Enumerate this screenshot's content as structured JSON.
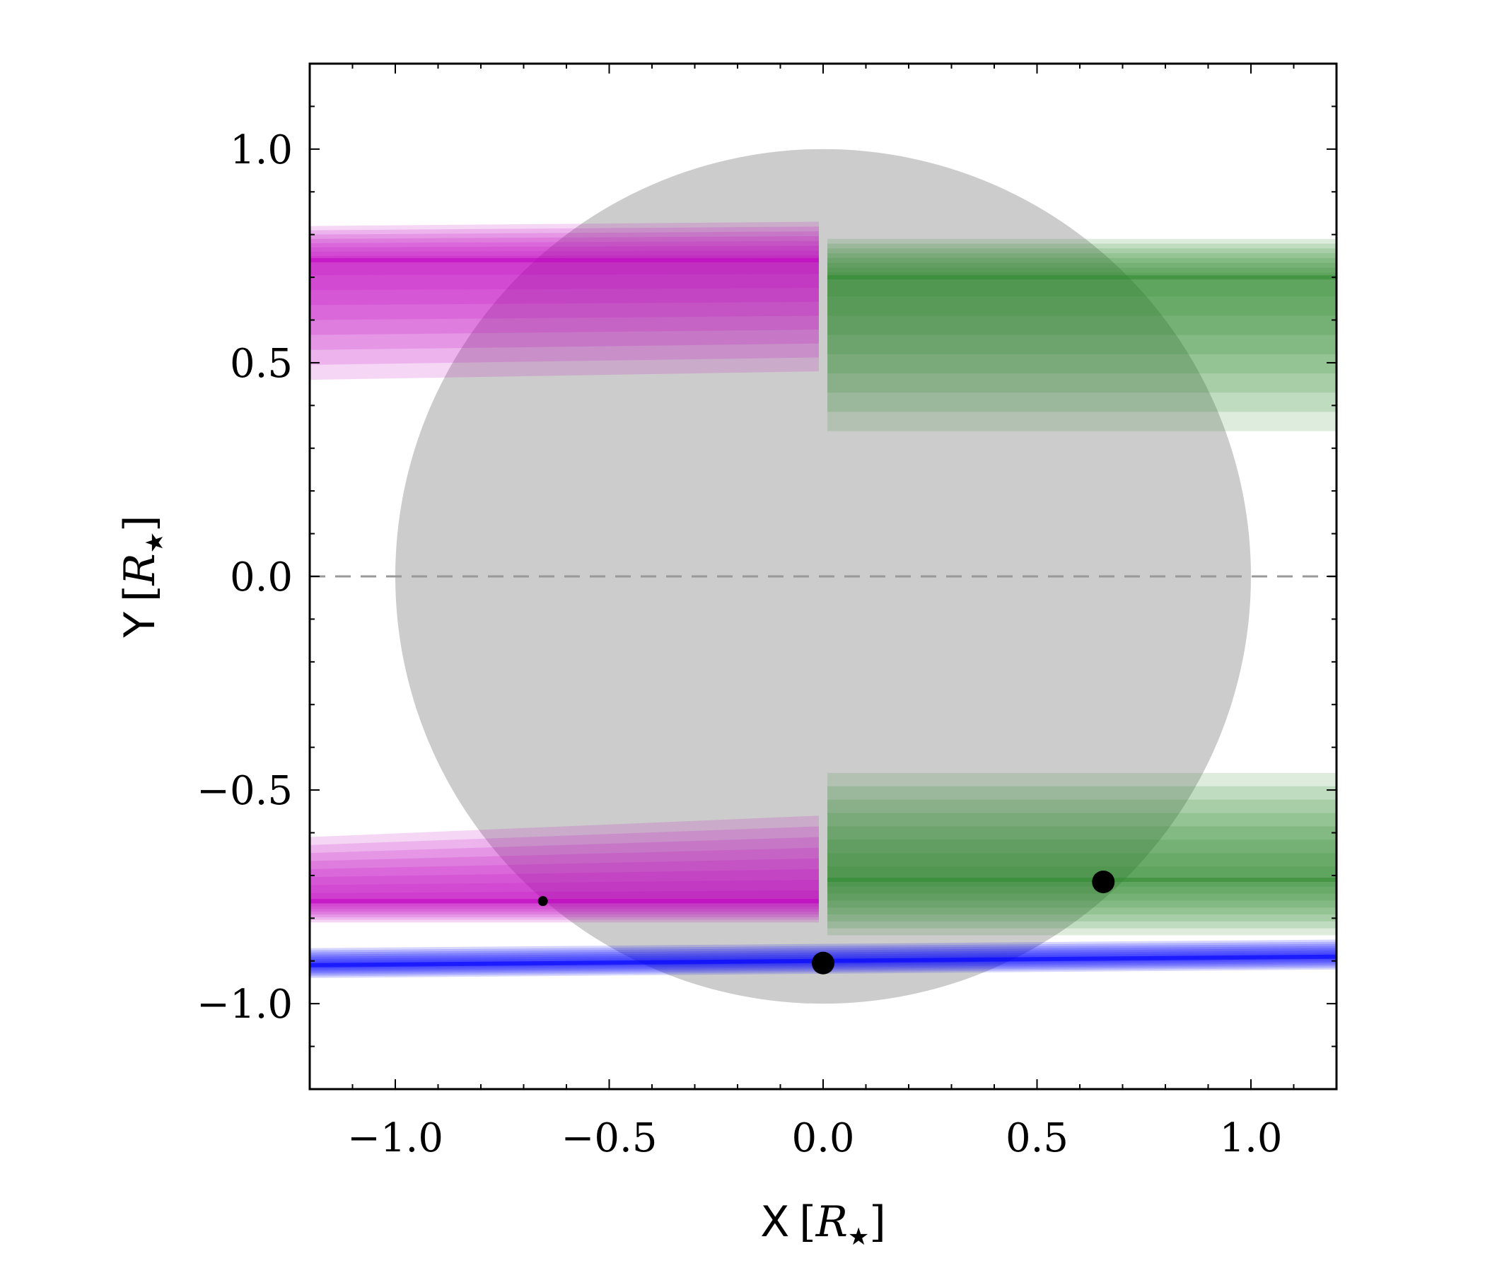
{
  "chart_data": {
    "type": "line",
    "title": "",
    "xlabel": {
      "name": "X",
      "unit_symbol": "R",
      "unit_subscript": "★"
    },
    "ylabel": {
      "name": "Y",
      "unit_symbol": "R",
      "unit_subscript": "★"
    },
    "xlim": [
      -1.2,
      1.2
    ],
    "ylim": [
      -1.2,
      1.2
    ],
    "xticks": [
      -1.0,
      -0.5,
      0.0,
      0.5,
      1.0
    ],
    "yticks": [
      -1.0,
      -0.5,
      0.0,
      0.5,
      1.0
    ],
    "xtick_labels": [
      "−1.0",
      "−0.5",
      "0.0",
      "0.5",
      "1.0"
    ],
    "ytick_labels": [
      "−1.0",
      "−0.5",
      "0.0",
      "0.5",
      "1.0"
    ],
    "grid": false,
    "stellar_disk": {
      "center": [
        0,
        0
      ],
      "radius": 1.0,
      "color": "#cccccc"
    },
    "reference_line": {
      "y": 0.0,
      "style": "dashed",
      "color": "#999999"
    },
    "series": [
      {
        "color": "#c000c0",
        "bands": [
          {
            "x": [
              -1.2,
              -0.01
            ],
            "y_center": [
              0.74,
              0.74
            ],
            "y_low": [
              0.46,
              0.48
            ],
            "y_high": [
              0.82,
              0.83
            ]
          },
          {
            "x": [
              -1.2,
              -0.01
            ],
            "y_center": [
              -0.76,
              -0.76
            ],
            "y_low": [
              -0.81,
              -0.81
            ],
            "y_high": [
              -0.61,
              -0.56
            ]
          }
        ]
      },
      {
        "color": "#2e8b2e",
        "bands": [
          {
            "x": [
              0.01,
              1.2
            ],
            "y_center": [
              0.7,
              0.7
            ],
            "y_low": [
              0.34,
              0.34
            ],
            "y_high": [
              0.79,
              0.79
            ]
          },
          {
            "x": [
              0.01,
              1.2
            ],
            "y_center": [
              -0.71,
              -0.71
            ],
            "y_low": [
              -0.84,
              -0.84
            ],
            "y_high": [
              -0.46,
              -0.46
            ]
          }
        ]
      },
      {
        "color": "#0000ff",
        "bands": [
          {
            "x": [
              -1.2,
              1.2
            ],
            "y_center": [
              -0.91,
              -0.89
            ],
            "y_low": [
              -0.94,
              -0.92
            ],
            "y_high": [
              -0.87,
              -0.85
            ]
          }
        ]
      }
    ],
    "points": [
      {
        "x": -0.655,
        "y": -0.76,
        "size": "small"
      },
      {
        "x": 0.0,
        "y": -0.905,
        "size": "large"
      },
      {
        "x": 0.655,
        "y": -0.715,
        "size": "large"
      }
    ]
  }
}
